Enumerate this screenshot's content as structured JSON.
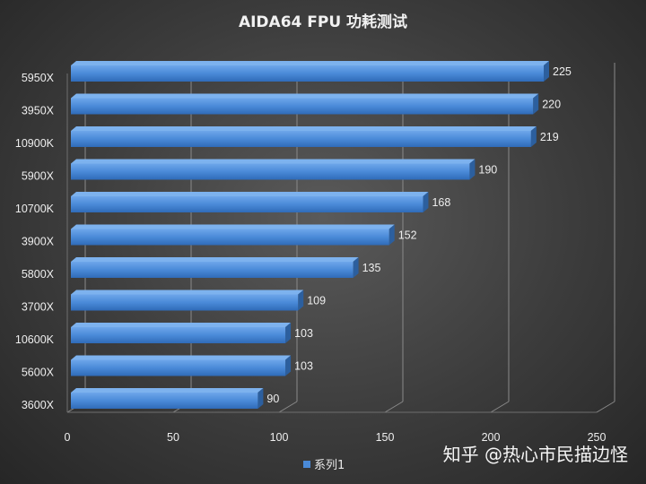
{
  "chart_data": {
    "type": "bar",
    "orientation": "horizontal",
    "title": "AIDA64 FPU 功耗测试",
    "categories": [
      "5950X",
      "3950X",
      "10900K",
      "5900X",
      "10700K",
      "3900X",
      "5800X",
      "3700X",
      "10600K",
      "5600X",
      "3600X"
    ],
    "series": [
      {
        "name": "系列1",
        "values": [
          225,
          220,
          219,
          190,
          168,
          152,
          135,
          109,
          103,
          103,
          90
        ]
      }
    ],
    "xlim": [
      0,
      250
    ],
    "x_ticks": [
      0,
      50,
      100,
      150,
      200,
      250
    ],
    "xlabel": "",
    "ylabel": "",
    "grid": true,
    "legend_position": "bottom",
    "bar_color": "#4a8ad8"
  },
  "watermark": "知乎 @热心市民描边怪"
}
